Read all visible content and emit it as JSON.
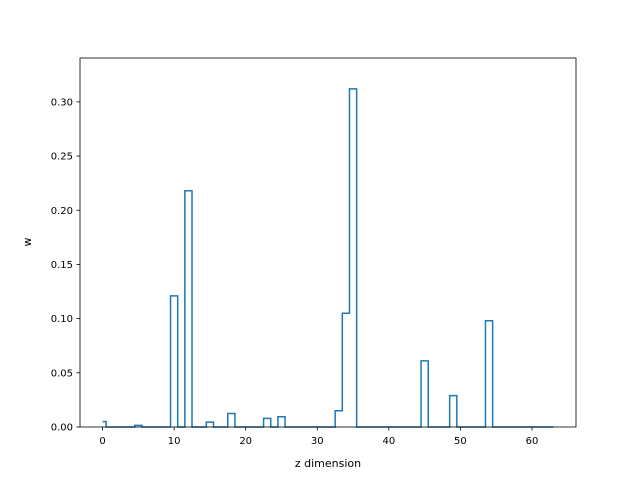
{
  "chart_data": {
    "type": "step",
    "xlabel": "z dimension",
    "ylabel": "w",
    "xlim": [
      -3.15,
      66.15
    ],
    "ylim": [
      0,
      0.3405
    ],
    "xticks": [
      0,
      10,
      20,
      30,
      40,
      50,
      60
    ],
    "yticks": [
      0.0,
      0.05,
      0.1,
      0.15,
      0.2,
      0.25,
      0.3
    ],
    "ytick_labels": [
      "0.00",
      "0.05",
      "0.10",
      "0.15",
      "0.20",
      "0.25",
      "0.30"
    ],
    "grid": false,
    "color": "#1f77b4",
    "x": [
      0,
      1,
      2,
      3,
      4,
      5,
      6,
      7,
      8,
      9,
      10,
      11,
      12,
      13,
      14,
      15,
      16,
      17,
      18,
      19,
      20,
      21,
      22,
      23,
      24,
      25,
      26,
      27,
      28,
      29,
      30,
      31,
      32,
      33,
      34,
      35,
      36,
      37,
      38,
      39,
      40,
      41,
      42,
      43,
      44,
      45,
      46,
      47,
      48,
      49,
      50,
      51,
      52,
      53,
      54,
      55,
      56,
      57,
      58,
      59,
      60,
      61,
      62,
      63
    ],
    "y": [
      0.005,
      0,
      0,
      0,
      0,
      0.0015,
      0,
      0,
      0,
      0,
      0.121,
      0,
      0.218,
      0,
      0,
      0.0045,
      0,
      0,
      0.0125,
      0,
      0,
      0,
      0,
      0.008,
      0,
      0.0095,
      0,
      0,
      0,
      0,
      0,
      0,
      0,
      0.015,
      0.105,
      0.312,
      0,
      0,
      0,
      0,
      0,
      0,
      0,
      0,
      0,
      0.061,
      0,
      0,
      0,
      0.029,
      0,
      0,
      0,
      0,
      0.098,
      0,
      0,
      0,
      0,
      0,
      0,
      0,
      0,
      0
    ]
  }
}
